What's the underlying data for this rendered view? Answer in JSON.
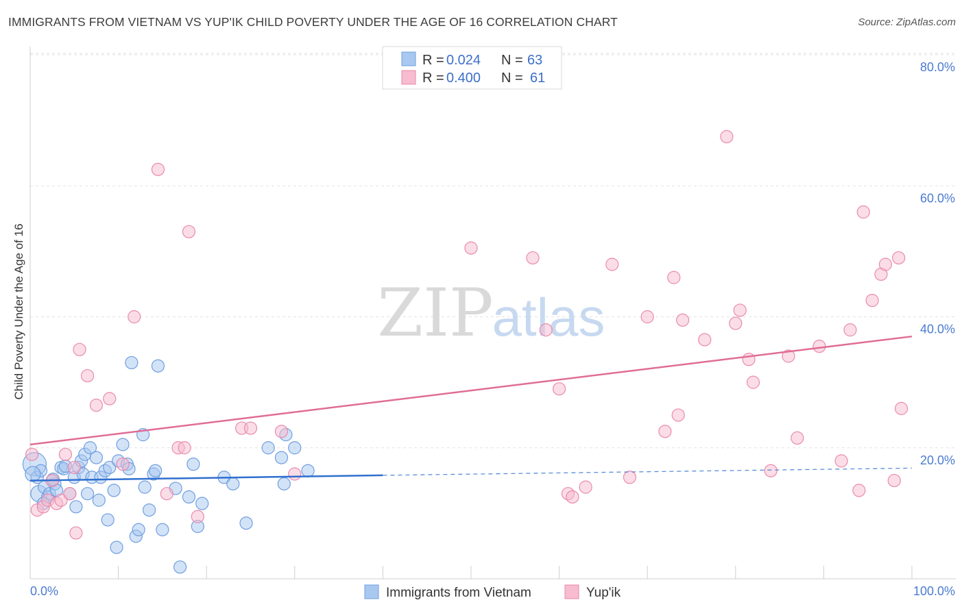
{
  "title": "IMMIGRANTS FROM VIETNAM VS YUP'IK CHILD POVERTY UNDER THE AGE OF 16 CORRELATION CHART",
  "source": "Source: ZipAtlas.com",
  "watermark": {
    "zip": "ZIP",
    "atlas": "atlas"
  },
  "legend_box": {
    "rows": [
      {
        "r_label": "R = ",
        "r_value": "0.024",
        "n_label": "N = ",
        "n_value": "63",
        "color": "#a8c8f0",
        "stroke": "#6f9ee0"
      },
      {
        "r_label": "R = ",
        "r_value": "0.400",
        "n_label": "N = ",
        "n_value": "61",
        "color": "#f7bcd0",
        "stroke": "#e98aab"
      }
    ]
  },
  "bottom_legend": [
    {
      "label": "Immigrants from Vietnam",
      "color": "#a8c8f0",
      "stroke": "#6f9ee0"
    },
    {
      "label": "Yup'ik",
      "color": "#f7bcd0",
      "stroke": "#e98aab"
    }
  ],
  "chart_data": {
    "type": "scatter",
    "title": "IMMIGRANTS FROM VIETNAM VS YUP'IK CHILD POVERTY UNDER THE AGE OF 16 CORRELATION CHART",
    "xlabel": "",
    "ylabel": "Child Poverty Under the Age of 16",
    "xlim": [
      0,
      100
    ],
    "ylim": [
      0,
      85
    ],
    "x_tick_labels": [
      "0.0%",
      "100.0%"
    ],
    "y_ticks": [
      20,
      40,
      60,
      80
    ],
    "y_tick_labels": [
      "20.0%",
      "40.0%",
      "60.0%",
      "80.0%"
    ],
    "grid": true,
    "legend_placement": "top-center",
    "series": [
      {
        "name": "Immigrants from Vietnam",
        "color": "#a8c8f0",
        "stroke": "#6f9ee0",
        "line_color": "#2f6fcf",
        "trend": {
          "x0": 0,
          "y0": 15.0,
          "x1": 40,
          "y1": 15.8,
          "dash_to_x": 100,
          "dash_to_y": 16.9
        },
        "points": [
          [
            0.5,
            17.5
          ],
          [
            0.8,
            15.5
          ],
          [
            1.2,
            16.5
          ],
          [
            1.0,
            13.0
          ],
          [
            1.6,
            14.0
          ],
          [
            2.0,
            12.5
          ],
          [
            2.2,
            13.0
          ],
          [
            2.5,
            15.0
          ],
          [
            2.8,
            14.5
          ],
          [
            3.5,
            17.0
          ],
          [
            3.8,
            16.8
          ],
          [
            4.0,
            17.2
          ],
          [
            5.0,
            15.5
          ],
          [
            5.2,
            11.0
          ],
          [
            5.5,
            17.0
          ],
          [
            5.8,
            18.0
          ],
          [
            6.0,
            16.0
          ],
          [
            6.2,
            19.0
          ],
          [
            6.5,
            13.0
          ],
          [
            6.8,
            20.0
          ],
          [
            7.0,
            15.5
          ],
          [
            7.5,
            18.5
          ],
          [
            7.8,
            12.0
          ],
          [
            8.0,
            15.5
          ],
          [
            8.5,
            16.5
          ],
          [
            8.8,
            9.0
          ],
          [
            9.0,
            17.0
          ],
          [
            9.5,
            13.5
          ],
          [
            9.8,
            4.8
          ],
          [
            10.0,
            18.0
          ],
          [
            10.5,
            20.5
          ],
          [
            11.0,
            17.5
          ],
          [
            11.5,
            33.0
          ],
          [
            11.2,
            16.8
          ],
          [
            12.0,
            6.5
          ],
          [
            12.3,
            7.5
          ],
          [
            12.8,
            22.0
          ],
          [
            13.0,
            14.0
          ],
          [
            13.5,
            10.5
          ],
          [
            14.0,
            16.0
          ],
          [
            14.2,
            16.5
          ],
          [
            14.5,
            32.5
          ],
          [
            15.0,
            7.5
          ],
          [
            16.5,
            13.8
          ],
          [
            17.0,
            1.8
          ],
          [
            18.0,
            12.5
          ],
          [
            18.5,
            17.5
          ],
          [
            19.0,
            8.0
          ],
          [
            19.5,
            11.5
          ],
          [
            22.0,
            15.5
          ],
          [
            23.0,
            14.5
          ],
          [
            24.5,
            8.5
          ],
          [
            27.0,
            20.0
          ],
          [
            28.5,
            18.5
          ],
          [
            29.0,
            22.0
          ],
          [
            28.8,
            14.5
          ],
          [
            30.0,
            20.0
          ],
          [
            31.5,
            16.5
          ],
          [
            3.0,
            13.5
          ],
          [
            4.5,
            13.0
          ],
          [
            1.5,
            11.5
          ],
          [
            2.6,
            15.2
          ],
          [
            0.3,
            16.0
          ]
        ],
        "point_sizes": {
          "0": 34,
          "3": 24,
          "62": 22
        }
      },
      {
        "name": "Yup'ik",
        "color": "#f7bcd0",
        "stroke": "#e98aab",
        "line_color": "#e06c95",
        "trend": {
          "x0": 0,
          "y0": 20.5,
          "x1": 100,
          "y1": 37.0
        },
        "points": [
          [
            0.2,
            19.0
          ],
          [
            0.8,
            10.5
          ],
          [
            1.5,
            11.0
          ],
          [
            2.0,
            12.0
          ],
          [
            2.5,
            15.0
          ],
          [
            3.0,
            11.5
          ],
          [
            3.5,
            12.0
          ],
          [
            4.0,
            19.0
          ],
          [
            4.5,
            13.0
          ],
          [
            5.0,
            17.0
          ],
          [
            5.2,
            7.0
          ],
          [
            5.6,
            35.0
          ],
          [
            6.5,
            31.0
          ],
          [
            7.5,
            26.5
          ],
          [
            9.0,
            27.5
          ],
          [
            10.5,
            17.5
          ],
          [
            11.8,
            40.0
          ],
          [
            14.5,
            62.5
          ],
          [
            15.5,
            13.0
          ],
          [
            16.8,
            20.0
          ],
          [
            17.5,
            20.0
          ],
          [
            18.0,
            53.0
          ],
          [
            19.0,
            9.5
          ],
          [
            24.0,
            23.0
          ],
          [
            25.0,
            23.0
          ],
          [
            28.5,
            22.5
          ],
          [
            30.0,
            16.0
          ],
          [
            50.0,
            50.5
          ],
          [
            57.0,
            49.0
          ],
          [
            58.5,
            38.0
          ],
          [
            60.0,
            29.0
          ],
          [
            61.0,
            13.0
          ],
          [
            61.5,
            12.5
          ],
          [
            63.0,
            14.0
          ],
          [
            66.0,
            48.0
          ],
          [
            68.0,
            15.5
          ],
          [
            70.0,
            40.0
          ],
          [
            72.0,
            22.5
          ],
          [
            73.0,
            46.0
          ],
          [
            73.5,
            25.0
          ],
          [
            74.0,
            39.5
          ],
          [
            76.5,
            36.5
          ],
          [
            79.0,
            67.5
          ],
          [
            80.0,
            39.0
          ],
          [
            80.5,
            41.0
          ],
          [
            81.5,
            33.5
          ],
          [
            82.0,
            30.0
          ],
          [
            84.0,
            16.5
          ],
          [
            86.0,
            34.0
          ],
          [
            87.0,
            21.5
          ],
          [
            89.5,
            35.5
          ],
          [
            92.0,
            18.0
          ],
          [
            93.0,
            38.0
          ],
          [
            94.0,
            13.5
          ],
          [
            94.5,
            56.0
          ],
          [
            95.5,
            42.5
          ],
          [
            96.5,
            46.5
          ],
          [
            97.0,
            48.0
          ],
          [
            98.0,
            15.0
          ],
          [
            98.5,
            49.0
          ],
          [
            98.8,
            26.0
          ]
        ],
        "point_sizes": {}
      }
    ]
  }
}
